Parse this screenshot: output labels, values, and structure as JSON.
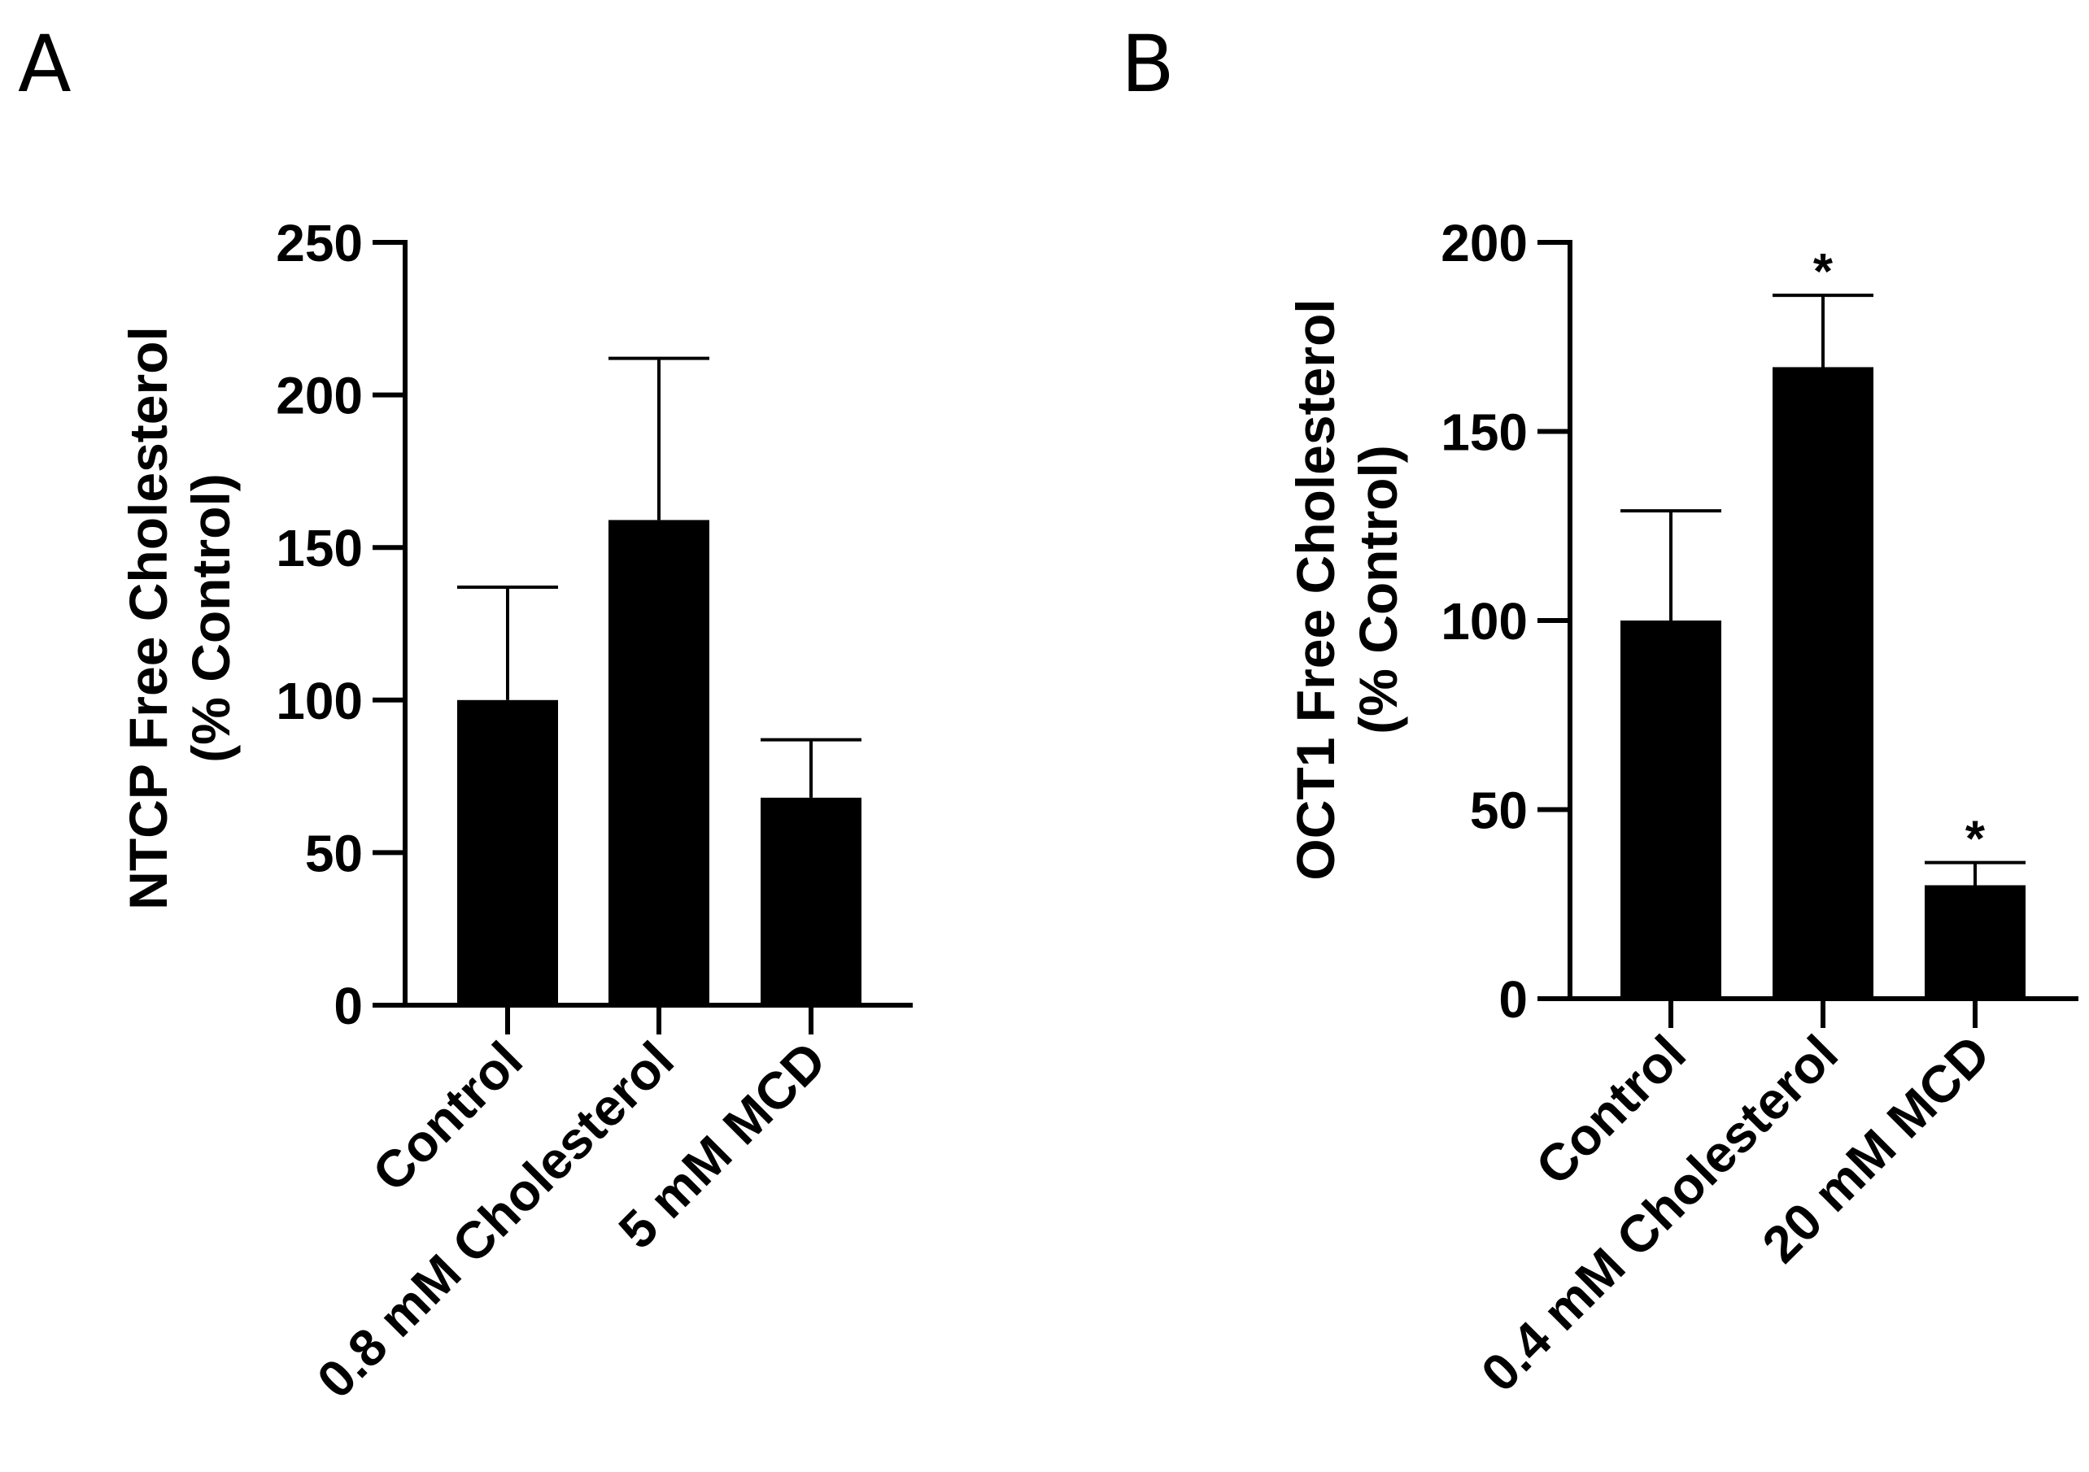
{
  "chart_data": [
    {
      "type": "bar",
      "panel_label": "A",
      "categories": [
        "Control",
        "0.8 mM Cholesterol",
        "5 mM MCD"
      ],
      "values": [
        100,
        159,
        68
      ],
      "error_upper": [
        37,
        53,
        19
      ],
      "significance": [
        "",
        "",
        ""
      ],
      "ylabel_line1": "NTCP Free Cholesterol",
      "ylabel_line2": "(% Control)",
      "ylim": [
        0,
        250
      ],
      "yticks": [
        0,
        50,
        100,
        150,
        200,
        250
      ],
      "bar_color": "#000000"
    },
    {
      "type": "bar",
      "panel_label": "B",
      "categories": [
        "Control",
        "0.4 mM Cholesterol",
        "20 mM MCD"
      ],
      "values": [
        100,
        167,
        30
      ],
      "error_upper": [
        29,
        19,
        6
      ],
      "significance": [
        "",
        "*",
        "*"
      ],
      "ylabel_line1": "OCT1 Free Cholesterol",
      "ylabel_line2": "(% Control)",
      "ylim": [
        0,
        200
      ],
      "yticks": [
        0,
        50,
        100,
        150,
        200
      ],
      "bar_color": "#000000"
    }
  ]
}
